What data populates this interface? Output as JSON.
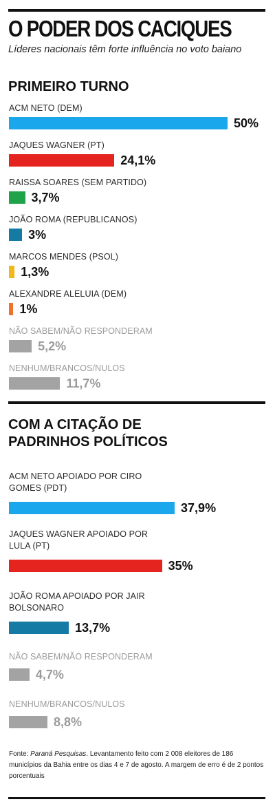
{
  "header": {
    "title": "O PODER DOS CACIQUES",
    "subtitle": "Líderes nacionais têm forte influência no voto baiano"
  },
  "chart_data": [
    {
      "type": "bar",
      "orientation": "horizontal",
      "title": "PRIMEIRO TURNO",
      "unit": "%",
      "categories": [
        "ACM NETO (DEM)",
        "JAQUES WAGNER (PT)",
        "RAISSA SOARES (SEM PARTIDO)",
        "JOÃO ROMA (REPUBLICANOS)",
        "MARCOS MENDES (PSOL)",
        "ALEXANDRE ALELUIA (DEM)",
        "NÃO SABEM/NÃO RESPONDERAM",
        "NENHUM/BRANCOS/NULOS"
      ],
      "values": [
        50,
        24.1,
        3.7,
        3,
        1.3,
        1,
        5.2,
        11.7
      ],
      "value_labels": [
        "50%",
        "24,1%",
        "3,7%",
        "3%",
        "1,3%",
        "1%",
        "5,2%",
        "11,7%"
      ],
      "colors": [
        "#1aa7ec",
        "#e52420",
        "#1ea34a",
        "#157ba5",
        "#f2b71a",
        "#f2712b",
        "#a3a3a3",
        "#a3a3a3"
      ],
      "muted": [
        false,
        false,
        false,
        false,
        false,
        false,
        true,
        true
      ]
    },
    {
      "type": "bar",
      "orientation": "horizontal",
      "title": "COM A CITAÇÃO DE PADRINHOS POLÍTICOS",
      "unit": "%",
      "categories": [
        "ACM NETO APOIADO POR CIRO GOMES (PDT)",
        "JAQUES WAGNER APOIADO POR LULA (PT)",
        "JOÃO ROMA APOIADO POR JAIR BOLSONARO",
        "NÃO SABEM/NÃO RESPONDERAM",
        "NENHUM/BRANCOS/NULOS"
      ],
      "values": [
        37.9,
        35,
        13.7,
        4.7,
        8.8
      ],
      "value_labels": [
        "37,9%",
        "35%",
        "13,7%",
        "4,7%",
        "8,8%"
      ],
      "colors": [
        "#1aa7ec",
        "#e52420",
        "#157ba5",
        "#a3a3a3",
        "#a3a3a3"
      ],
      "muted": [
        false,
        false,
        false,
        true,
        true
      ]
    }
  ],
  "source": {
    "prefix": "Fonte: ",
    "publisher": "Paraná Pesquisas",
    "text": ". Levantamento feito com 2 008 eleitores de 186 municípios da Bahia entre os dias 4 e 7 de agosto. A margem de erro é de 2 pontos porcentuais"
  }
}
